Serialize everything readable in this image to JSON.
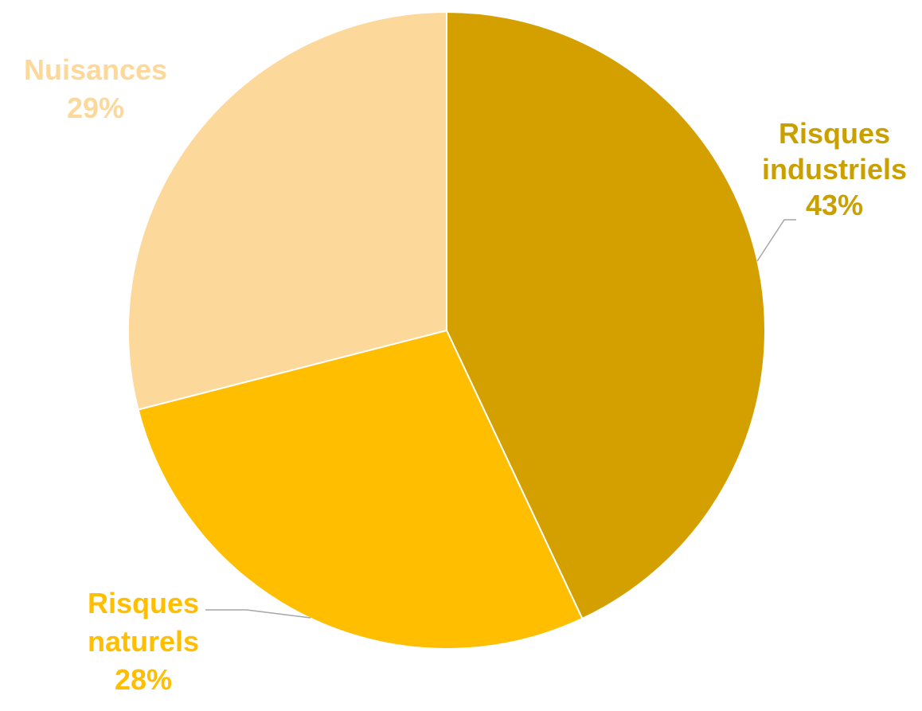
{
  "chart_data": {
    "type": "pie",
    "title": "",
    "slices": [
      {
        "name": "Risques industriels",
        "label_lines": [
          "Risques",
          "industriels"
        ],
        "value": 43,
        "value_label": "43%",
        "color": "#D4A000",
        "label_color": "#C9A000"
      },
      {
        "name": "Risques naturels",
        "label_lines": [
          "Risques",
          "naturels"
        ],
        "value": 28,
        "value_label": "28%",
        "color": "#FFBE00",
        "label_color": "#FFBE00"
      },
      {
        "name": "Nuisances",
        "label_lines": [
          "Nuisances"
        ],
        "value": 29,
        "value_label": "29%",
        "color": "#FDD89B",
        "label_color": "#FDD89B"
      }
    ],
    "start_angle_deg": 0,
    "direction": "clockwise",
    "slice_border_color": "#FFFFFF",
    "leader_line_color": "#A6A6A6"
  }
}
